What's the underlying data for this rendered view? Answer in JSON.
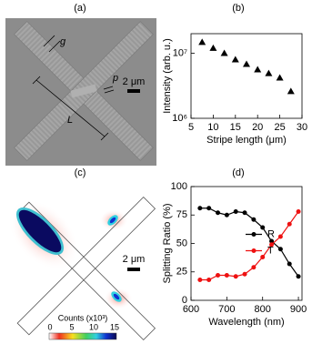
{
  "chart_data": [
    {
      "type": "scatter",
      "label": "(b)",
      "x_label": "Stripe length (μm)",
      "y_label": "Intensity (arb. u.)",
      "log_y": true,
      "xlim": [
        5,
        30
      ],
      "xticks": [
        5,
        10,
        15,
        20,
        25,
        30
      ],
      "ylim": [
        1000000,
        20000000
      ],
      "yticks": [
        {
          "value": 1000000,
          "label": "10⁶"
        },
        {
          "value": 10000000,
          "label": "10⁷"
        }
      ],
      "series": [
        {
          "color": "#000000",
          "marker": "triangle",
          "x": [
            7.5,
            10,
            12.5,
            15,
            17.5,
            20,
            22.5,
            25,
            27.5
          ],
          "values": [
            14800000,
            12000000,
            10000000,
            8000000,
            6800000,
            5600000,
            4900000,
            4200000,
            2600000
          ]
        }
      ]
    },
    {
      "type": "line",
      "label": "(d)",
      "x_label": "Wavelength (nm)",
      "y_label": "Splitting Ratio (%)",
      "log_y": false,
      "xlim": [
        600,
        910
      ],
      "xticks": [
        600,
        700,
        800,
        900
      ],
      "ylim": [
        0,
        100
      ],
      "yticks": [
        0,
        25,
        50,
        75,
        100
      ],
      "legend": "center right",
      "x": [
        625,
        650,
        675,
        700,
        725,
        750,
        775,
        800,
        825,
        850,
        875,
        900
      ],
      "series": [
        {
          "name": "R",
          "color": "#000000",
          "values": [
            81,
            81,
            77,
            75,
            78,
            77,
            71,
            64,
            52,
            45,
            32,
            21
          ]
        },
        {
          "name": "T",
          "color": "#ee1111",
          "values": [
            18,
            18,
            22,
            22,
            21,
            23,
            29,
            38,
            49,
            56,
            67,
            78
          ]
        }
      ]
    }
  ],
  "images": [
    {
      "label": "(a)",
      "gap": "g",
      "period": "p",
      "length": "L",
      "scale_bar": "2 μm"
    },
    {
      "label": "(c)",
      "scale_bar": "2 μm",
      "colorbar_label": "Counts (x10³)",
      "colorbar_ticks": [
        "0",
        "5",
        "10",
        "15"
      ]
    }
  ]
}
